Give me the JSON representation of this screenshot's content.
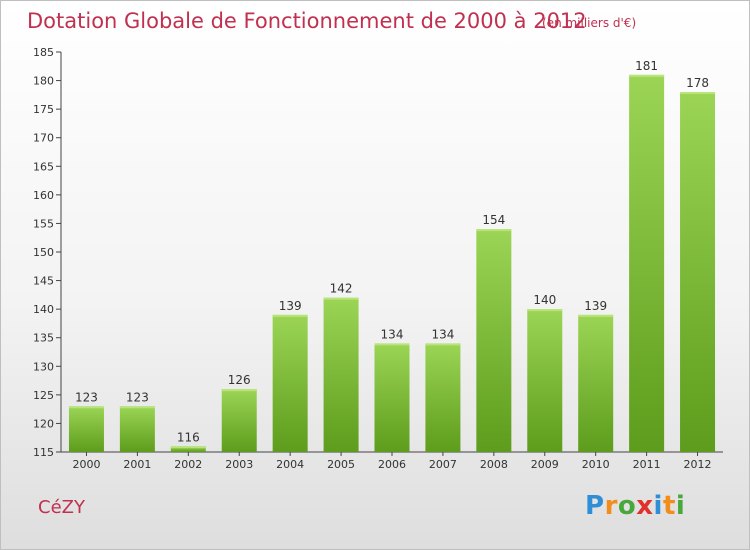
{
  "title": "Dotation Globale de Fonctionnement de 2000 à 2012",
  "unit_note": "(en milliers d'€)",
  "commune": "CéZY",
  "logo": {
    "text": "Proxiti",
    "letters": [
      {
        "ch": "P",
        "color": "#2f8fd6"
      },
      {
        "ch": "r",
        "color": "#f28c1a"
      },
      {
        "ch": "o",
        "color": "#49a83c"
      },
      {
        "ch": "x",
        "color": "#e0312b"
      },
      {
        "ch": "i",
        "color": "#2f8fd6"
      },
      {
        "ch": "t",
        "color": "#f28c1a"
      },
      {
        "ch": "i",
        "color": "#49a83c"
      }
    ]
  },
  "colors": {
    "accent": "#c0304f",
    "bar_light": "#9cd556",
    "bar_dark": "#5d9c1c",
    "axis": "#444444"
  },
  "chart_data": {
    "type": "bar",
    "title": "Dotation Globale de Fonctionnement de 2000 à 2012",
    "ylabel": "",
    "xlabel": "",
    "categories": [
      "2000",
      "2001",
      "2002",
      "2003",
      "2004",
      "2005",
      "2006",
      "2007",
      "2008",
      "2009",
      "2010",
      "2011",
      "2012"
    ],
    "values": [
      123,
      123,
      116,
      126,
      139,
      142,
      134,
      134,
      154,
      140,
      139,
      181,
      178
    ],
    "ylim": [
      115,
      185
    ],
    "yticks": [
      115,
      120,
      125,
      130,
      135,
      140,
      145,
      150,
      155,
      160,
      165,
      170,
      175,
      180,
      185
    ],
    "grid": false,
    "legend": "none"
  }
}
